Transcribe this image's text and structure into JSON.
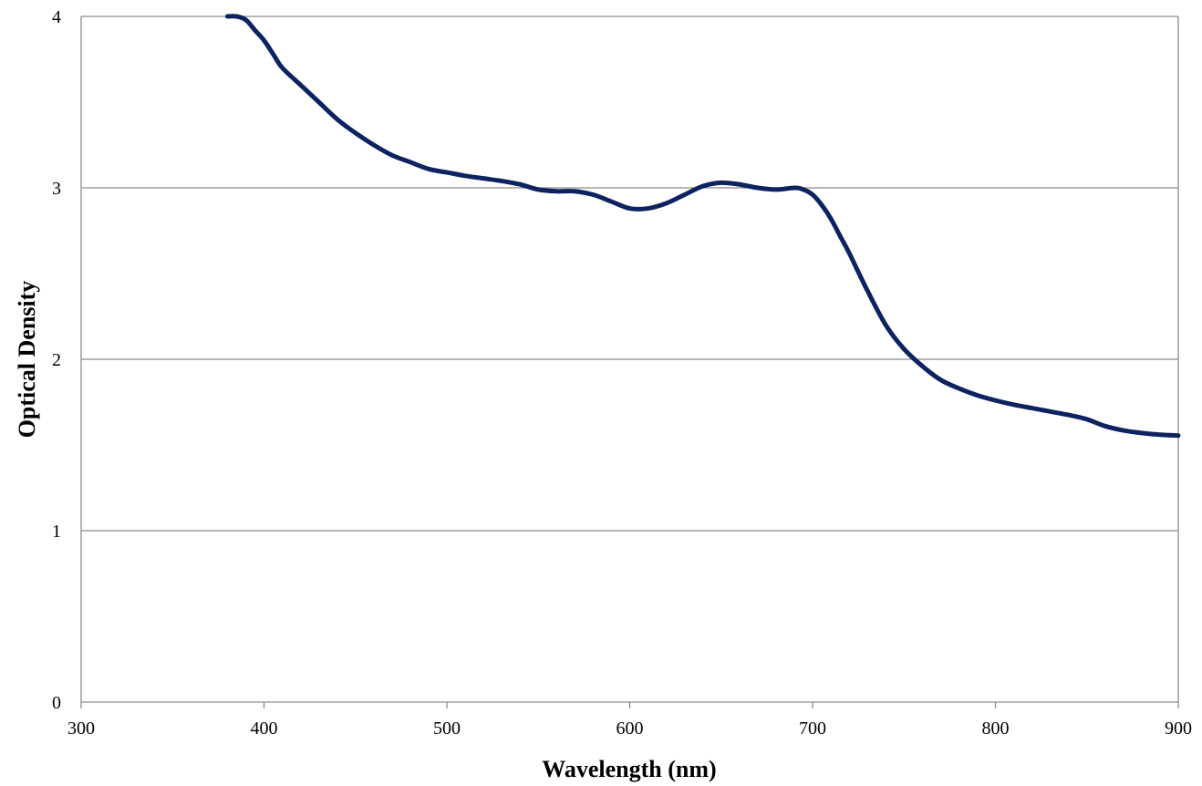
{
  "chart_data": {
    "type": "line",
    "title": "",
    "xlabel": "Wavelength (nm)",
    "ylabel": "Optical Density",
    "xlim": [
      300,
      900
    ],
    "ylim": [
      0,
      4
    ],
    "xticks": [
      300,
      400,
      500,
      600,
      700,
      800,
      900
    ],
    "yticks": [
      0,
      1,
      2,
      3,
      4
    ],
    "grid": "horizontal",
    "legend": "none",
    "series": [
      {
        "color": "#0d2260",
        "x": [
          380,
          385,
          390,
          395,
          400,
          405,
          410,
          420,
          430,
          440,
          450,
          460,
          470,
          480,
          490,
          500,
          510,
          520,
          530,
          540,
          550,
          560,
          570,
          580,
          590,
          600,
          610,
          620,
          630,
          640,
          650,
          660,
          670,
          680,
          690,
          695,
          700,
          705,
          710,
          715,
          720,
          730,
          740,
          750,
          760,
          770,
          780,
          790,
          800,
          810,
          820,
          830,
          840,
          850,
          860,
          870,
          880,
          890,
          900
        ],
        "y": [
          4.0,
          4.0,
          3.98,
          3.92,
          3.86,
          3.78,
          3.7,
          3.6,
          3.5,
          3.4,
          3.32,
          3.25,
          3.19,
          3.15,
          3.11,
          3.09,
          3.07,
          3.055,
          3.04,
          3.02,
          2.99,
          2.98,
          2.98,
          2.96,
          2.92,
          2.88,
          2.88,
          2.91,
          2.96,
          3.01,
          3.03,
          3.02,
          3.0,
          2.99,
          3.0,
          2.99,
          2.96,
          2.9,
          2.82,
          2.72,
          2.62,
          2.4,
          2.2,
          2.06,
          1.96,
          1.88,
          1.83,
          1.79,
          1.76,
          1.735,
          1.715,
          1.695,
          1.675,
          1.65,
          1.61,
          1.585,
          1.57,
          1.56,
          1.555
        ]
      }
    ]
  }
}
